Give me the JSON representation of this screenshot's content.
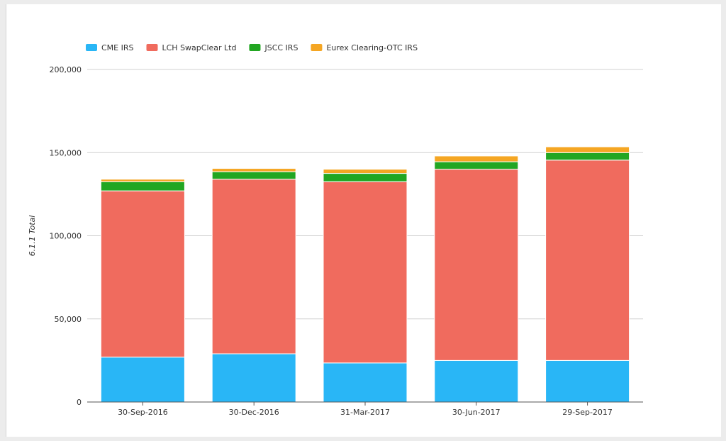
{
  "chart_data": {
    "type": "bar",
    "stacked": true,
    "categories": [
      "30-Sep-2016",
      "30-Dec-2016",
      "31-Mar-2017",
      "30-Jun-2017",
      "29-Sep-2017"
    ],
    "series": [
      {
        "name": "CME IRS",
        "color": "#29b6f6",
        "values": [
          27000,
          29000,
          23500,
          25000,
          25000
        ]
      },
      {
        "name": "LCH SwapClear Ltd",
        "color": "#f06b5e",
        "values": [
          100000,
          105000,
          109000,
          115000,
          120500
        ]
      },
      {
        "name": "JSCC IRS",
        "color": "#22a622",
        "values": [
          5500,
          4500,
          5000,
          4500,
          4500
        ]
      },
      {
        "name": "Eurex Clearing-OTC IRS",
        "color": "#f5a623",
        "values": [
          1500,
          2000,
          2500,
          3500,
          3500
        ]
      }
    ],
    "ylabel": "6.1.1 Total",
    "ylim": [
      0,
      200000
    ],
    "yticks": [
      "0",
      "50,000",
      "100,000",
      "150,000",
      "200,000"
    ],
    "grid": true,
    "legend": "top-left"
  }
}
